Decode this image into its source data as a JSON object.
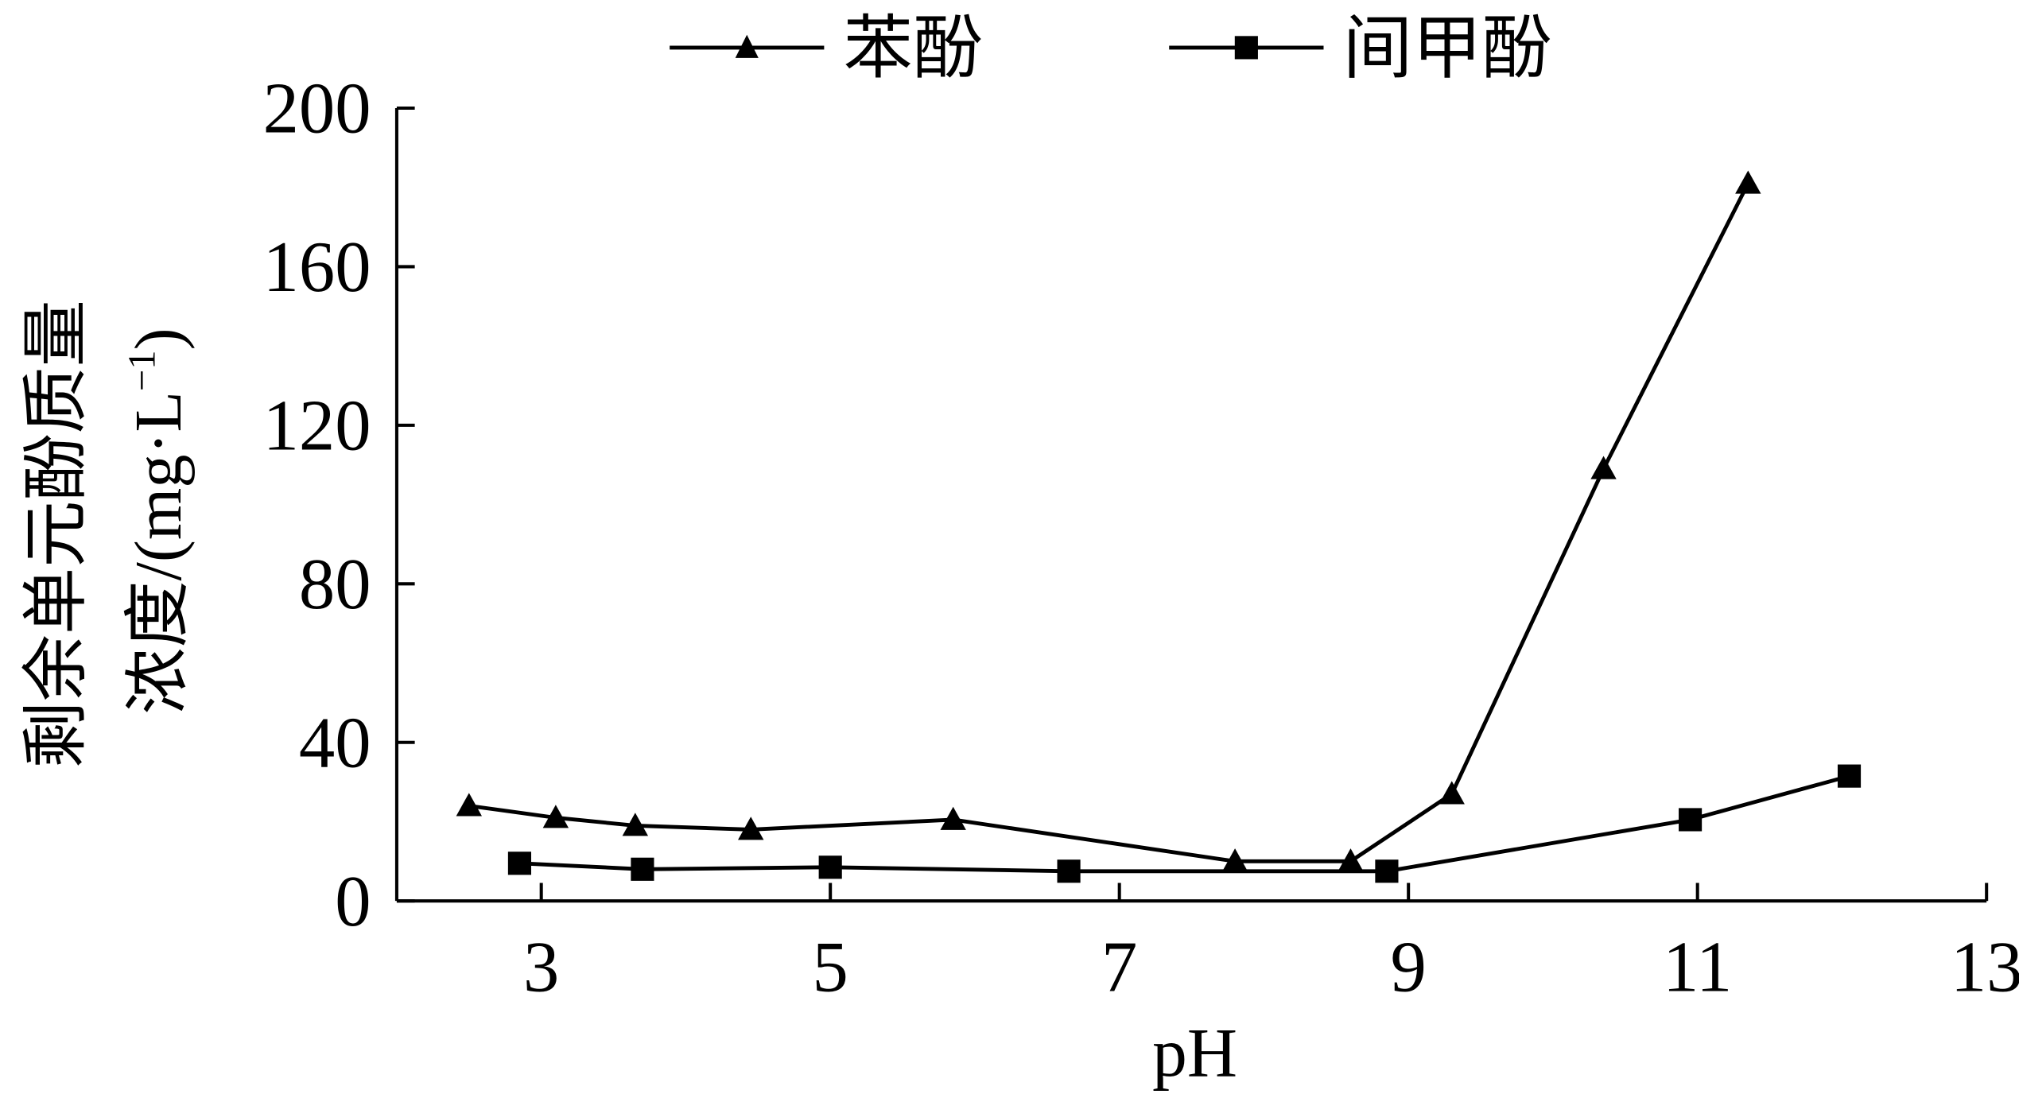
{
  "chart_data": {
    "type": "line",
    "xlabel": "pH",
    "ylabel_line1": "剩余单元酚质量",
    "ylabel_line2_cn": "浓度",
    "ylabel_line2_unit": "/(mg·L",
    "ylabel_unit_exp": "−1",
    "ylabel_unit_close": ")",
    "xlim": [
      2,
      13
    ],
    "ylim": [
      0,
      200
    ],
    "x_ticks": [
      3,
      5,
      7,
      9,
      11,
      13
    ],
    "x_tick_labels": [
      "3",
      "5",
      "7",
      "9",
      "11",
      "13"
    ],
    "y_ticks": [
      0,
      40,
      80,
      120,
      160,
      200
    ],
    "y_tick_labels": [
      "0",
      "40",
      "80",
      "120",
      "160",
      "200"
    ],
    "legend_position": "top-center",
    "series": [
      {
        "name": "苯酚",
        "marker": "triangle",
        "color": "#000000",
        "x": [
          2.5,
          3.1,
          3.65,
          4.45,
          5.85,
          7.8,
          8.6,
          9.3,
          10.35,
          11.35
        ],
        "y": [
          24,
          21,
          19,
          18,
          20.5,
          10,
          10,
          27,
          109,
          181
        ]
      },
      {
        "name": "间甲酚",
        "marker": "square",
        "color": "#000000",
        "x": [
          2.85,
          3.7,
          5.0,
          6.65,
          8.85,
          10.95,
          12.05
        ],
        "y": [
          9.5,
          8,
          8.5,
          7.5,
          7.5,
          20.5,
          31.5
        ]
      }
    ]
  }
}
